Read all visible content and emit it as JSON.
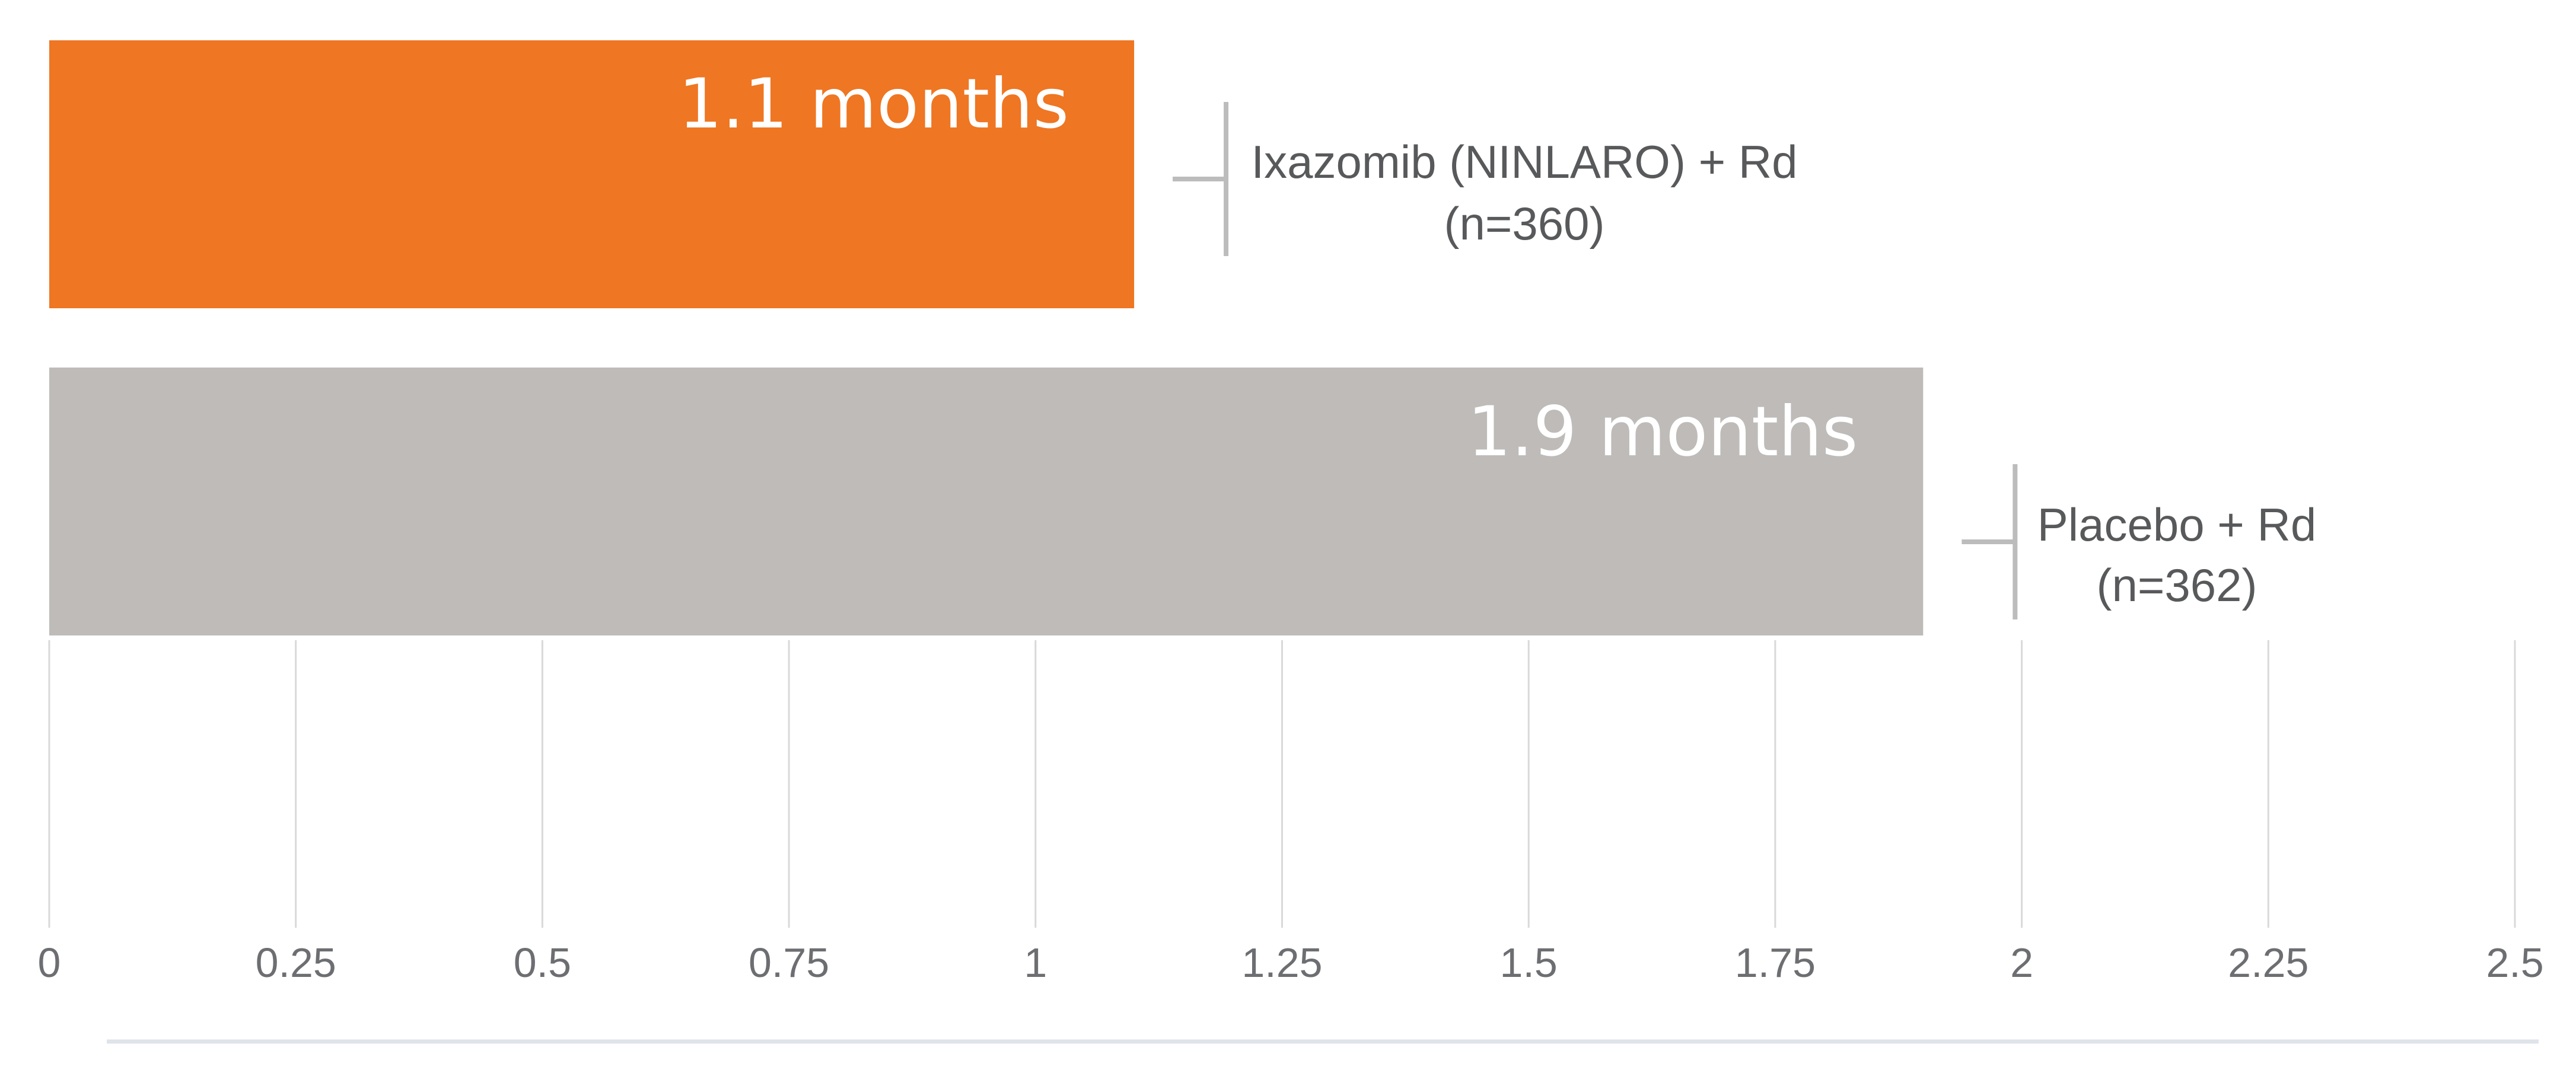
{
  "chart_data": {
    "type": "bar",
    "orientation": "horizontal",
    "xlim": [
      0,
      2.5
    ],
    "x_ticks": [
      "0",
      "0.25",
      "0.5",
      "0.75",
      "1",
      "1.25",
      "1.5",
      "1.75",
      "2",
      "2.25",
      "2.5"
    ],
    "grid": true,
    "bars": [
      {
        "value": 1.1,
        "value_label": "1.1 months",
        "series_label_line1": "Ixazomib (NINLARO) + Rd",
        "series_label_line2": "(n=360)",
        "color": "#ef7622"
      },
      {
        "value": 1.9,
        "value_label": "1.9 months",
        "series_label_line1": "Placebo + Rd",
        "series_label_line2": "(n=362)",
        "color": "#bebbb9"
      }
    ],
    "colors": {
      "grid": "#d9d9d9",
      "tick_text": "#6d6e71",
      "label_text": "#58595b",
      "bracket": "#bcbcbc",
      "bottom_rule": "#dfe3ea"
    }
  }
}
